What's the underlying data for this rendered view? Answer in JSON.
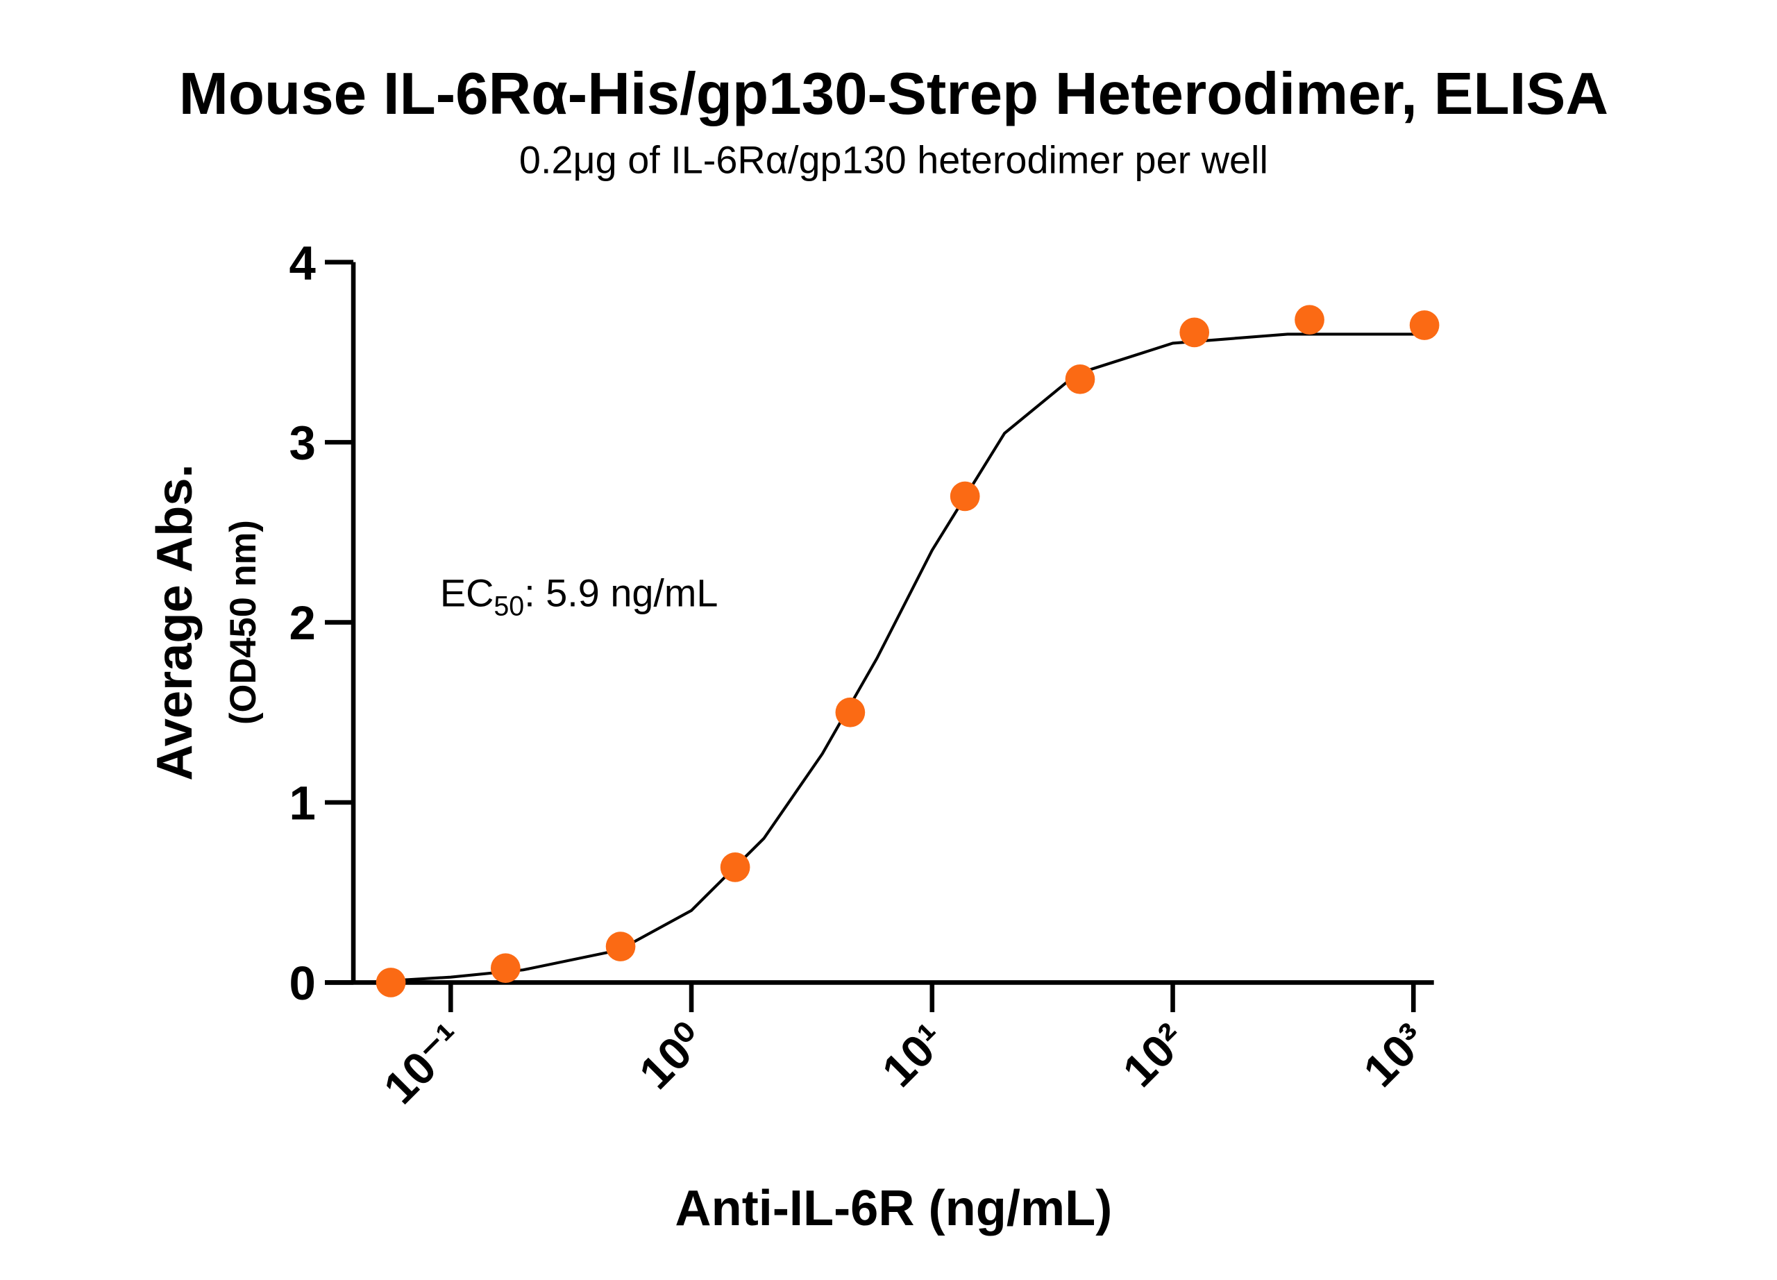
{
  "chart_data": {
    "type": "scatter",
    "title": "Mouse IL-6Rα-His/gp130-Strep Heterodimer, ELISA",
    "subtitle": "0.2μg of IL-6Rα/gp130 heterodimer per well",
    "x_label": "Anti-IL-6R (ng/mL)",
    "y_label": [
      "Average Abs.",
      "(OD450 nm)"
    ],
    "annotation": {
      "text": "EC",
      "subscript": "50",
      "rest": ": 5.9 ng/mL"
    },
    "xscale": "log",
    "xlim": [
      0.03,
      1216
    ],
    "xticks": [
      {
        "value": 0.1,
        "label": "10⁻¹"
      },
      {
        "value": 1,
        "label": "10⁰"
      },
      {
        "value": 10,
        "label": "10¹"
      },
      {
        "value": 100,
        "label": "10²"
      },
      {
        "value": 1000,
        "label": "10³"
      }
    ],
    "ylim": [
      0,
      4
    ],
    "yticks": [
      0,
      1,
      2,
      3,
      4
    ],
    "grid": false,
    "series": [
      {
        "style": "marker",
        "color": "#fb6a14",
        "x": [
          0.0564,
          0.169,
          0.508,
          1.52,
          4.57,
          13.7,
          41.2,
          123,
          370,
          1111
        ],
        "values": [
          0,
          0.08,
          0.2,
          0.64,
          1.5,
          2.7,
          3.35,
          3.61,
          3.68,
          3.65
        ]
      },
      {
        "style": "line",
        "color": "#000000",
        "x": [
          0.0564,
          0.1,
          0.2,
          0.5,
          1,
          2,
          3.5,
          5.9,
          10,
          20,
          40,
          100,
          300,
          1111
        ],
        "values": [
          0.01,
          0.03,
          0.07,
          0.18,
          0.4,
          0.8,
          1.27,
          1.8,
          2.4,
          3.05,
          3.38,
          3.55,
          3.6,
          3.6
        ]
      }
    ]
  }
}
